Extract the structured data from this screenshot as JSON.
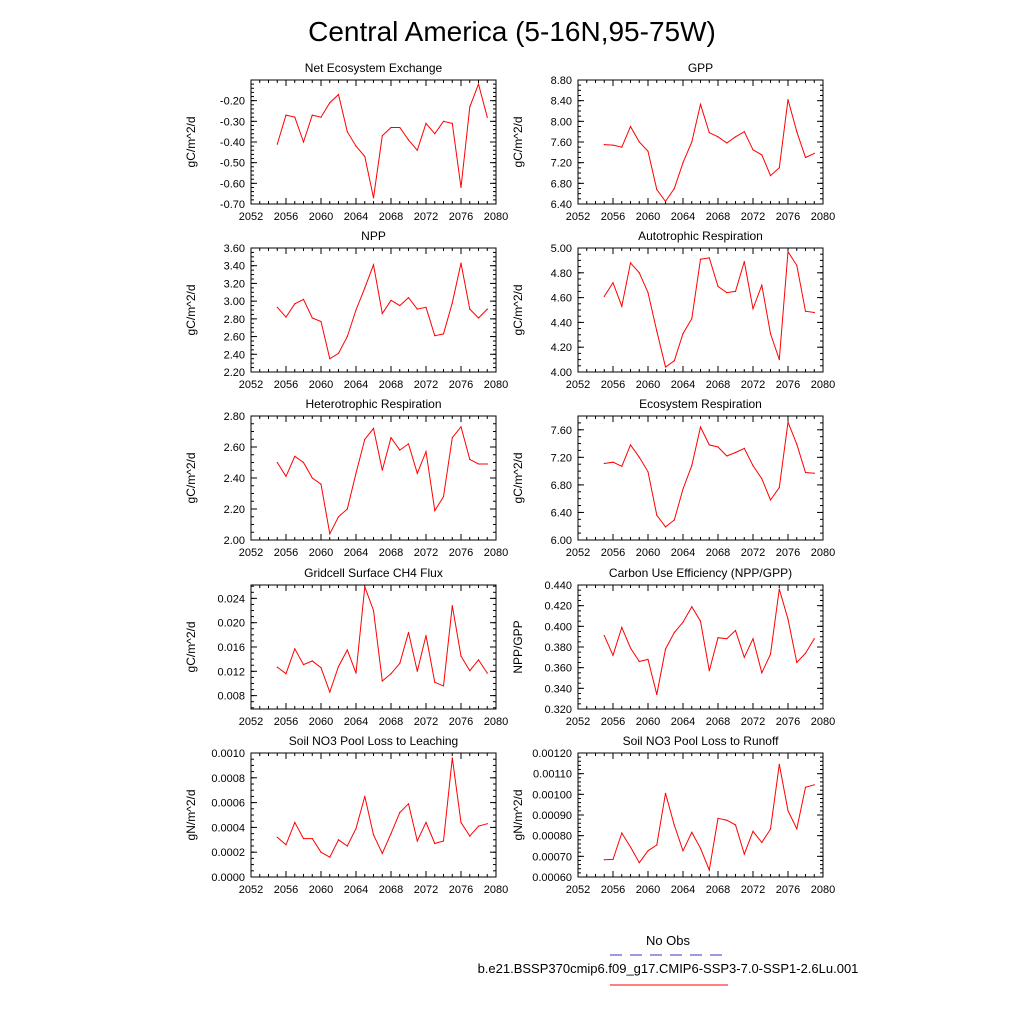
{
  "figure": {
    "title": "Central America (5-16N,95-75W)",
    "legend": {
      "obs_label": "No Obs",
      "obs_color": "#3333cc",
      "model_label": "b.e21.BSSP370cmip6.f09_g17.CMIP6-SSP3-7.0-SSP1-2.6Lu.001",
      "model_color": "#ff0000"
    }
  },
  "chart_data": [
    {
      "type": "line",
      "title": "Net Ecosystem Exchange",
      "ylabel": "gC/m^2/d",
      "xlim": [
        2052,
        2080
      ],
      "xticks": [
        2052,
        2056,
        2060,
        2064,
        2068,
        2072,
        2076,
        2080
      ],
      "ylim": [
        -0.7,
        -0.1
      ],
      "yticks": [
        "-0.70",
        "-0.60",
        "-0.50",
        "-0.40",
        "-0.30",
        "-0.20"
      ],
      "yminor": 0.02,
      "series": [
        {
          "color": "#ff0000",
          "x": [
            2055,
            2056,
            2057,
            2058,
            2059,
            2060,
            2061,
            2062,
            2063,
            2064,
            2065,
            2066,
            2067,
            2068,
            2069,
            2070,
            2071,
            2072,
            2073,
            2074,
            2075,
            2076,
            2077,
            2078,
            2079
          ],
          "y": [
            -0.41,
            -0.27,
            -0.28,
            -0.4,
            -0.27,
            -0.28,
            -0.21,
            -0.17,
            -0.35,
            -0.42,
            -0.47,
            -0.67,
            -0.37,
            -0.33,
            -0.33,
            -0.39,
            -0.44,
            -0.31,
            -0.36,
            -0.3,
            -0.31,
            -0.62,
            -0.23,
            -0.12,
            -0.28
          ]
        }
      ]
    },
    {
      "type": "line",
      "title": "GPP",
      "ylabel": "gC/m^2/d",
      "xlim": [
        2052,
        2080
      ],
      "xticks": [
        2052,
        2056,
        2060,
        2064,
        2068,
        2072,
        2076,
        2080
      ],
      "ylim": [
        6.4,
        8.8
      ],
      "yticks": [
        "6.40",
        "6.80",
        "7.20",
        "7.60",
        "8.00",
        "8.40",
        "8.80"
      ],
      "yminor": 0.1,
      "series": [
        {
          "color": "#ff0000",
          "x": [
            2055,
            2056,
            2057,
            2058,
            2059,
            2060,
            2061,
            2062,
            2063,
            2064,
            2065,
            2066,
            2067,
            2068,
            2069,
            2070,
            2071,
            2072,
            2073,
            2074,
            2075,
            2076,
            2077,
            2078,
            2079
          ],
          "y": [
            7.55,
            7.54,
            7.5,
            7.9,
            7.6,
            7.42,
            6.68,
            6.45,
            6.7,
            7.2,
            7.6,
            8.33,
            7.78,
            7.7,
            7.58,
            7.7,
            7.8,
            7.45,
            7.35,
            6.95,
            7.1,
            8.42,
            7.8,
            7.3,
            7.38
          ]
        }
      ]
    },
    {
      "type": "line",
      "title": "NPP",
      "ylabel": "gC/m^2/d",
      "xlim": [
        2052,
        2080
      ],
      "xticks": [
        2052,
        2056,
        2060,
        2064,
        2068,
        2072,
        2076,
        2080
      ],
      "ylim": [
        2.2,
        3.6
      ],
      "yticks": [
        "2.20",
        "2.40",
        "2.60",
        "2.80",
        "3.00",
        "3.20",
        "3.40",
        "3.60"
      ],
      "yminor": 0.05,
      "series": [
        {
          "color": "#ff0000",
          "x": [
            2055,
            2056,
            2057,
            2058,
            2059,
            2060,
            2061,
            2062,
            2063,
            2064,
            2065,
            2066,
            2067,
            2068,
            2069,
            2070,
            2071,
            2072,
            2073,
            2074,
            2075,
            2076,
            2077,
            2078,
            2079
          ],
          "y": [
            2.93,
            2.82,
            2.97,
            3.02,
            2.81,
            2.77,
            2.35,
            2.41,
            2.6,
            2.9,
            3.15,
            3.41,
            2.86,
            3.01,
            2.95,
            3.04,
            2.91,
            2.93,
            2.61,
            2.63,
            2.98,
            3.43,
            2.91,
            2.81,
            2.91
          ]
        }
      ]
    },
    {
      "type": "line",
      "title": "Autotrophic Respiration",
      "ylabel": "gC/m^2/d",
      "xlim": [
        2052,
        2080
      ],
      "xticks": [
        2052,
        2056,
        2060,
        2064,
        2068,
        2072,
        2076,
        2080
      ],
      "ylim": [
        4.0,
        5.0
      ],
      "yticks": [
        "4.00",
        "4.20",
        "4.40",
        "4.60",
        "4.80",
        "5.00"
      ],
      "yminor": 0.05,
      "series": [
        {
          "color": "#ff0000",
          "x": [
            2055,
            2056,
            2057,
            2058,
            2059,
            2060,
            2061,
            2062,
            2063,
            2064,
            2065,
            2066,
            2067,
            2068,
            2069,
            2070,
            2071,
            2072,
            2073,
            2074,
            2075,
            2076,
            2077,
            2078,
            2079
          ],
          "y": [
            4.61,
            4.72,
            4.53,
            4.88,
            4.8,
            4.64,
            4.33,
            4.04,
            4.09,
            4.31,
            4.43,
            4.91,
            4.92,
            4.69,
            4.64,
            4.65,
            4.89,
            4.51,
            4.7,
            4.31,
            4.1,
            4.97,
            4.86,
            4.49,
            4.48
          ]
        }
      ]
    },
    {
      "type": "line",
      "title": "Heterotrophic Respiration",
      "ylabel": "gC/m^2/d",
      "xlim": [
        2052,
        2080
      ],
      "xticks": [
        2052,
        2056,
        2060,
        2064,
        2068,
        2072,
        2076,
        2080
      ],
      "ylim": [
        2.0,
        2.8
      ],
      "yticks": [
        "2.00",
        "2.20",
        "2.40",
        "2.60",
        "2.80"
      ],
      "yminor": 0.05,
      "series": [
        {
          "color": "#ff0000",
          "x": [
            2055,
            2056,
            2057,
            2058,
            2059,
            2060,
            2061,
            2062,
            2063,
            2064,
            2065,
            2066,
            2067,
            2068,
            2069,
            2070,
            2071,
            2072,
            2073,
            2074,
            2075,
            2076,
            2077,
            2078,
            2079
          ],
          "y": [
            2.5,
            2.41,
            2.54,
            2.5,
            2.4,
            2.36,
            2.04,
            2.15,
            2.2,
            2.43,
            2.65,
            2.72,
            2.45,
            2.66,
            2.58,
            2.62,
            2.43,
            2.57,
            2.19,
            2.28,
            2.66,
            2.73,
            2.52,
            2.49,
            2.49
          ]
        }
      ]
    },
    {
      "type": "line",
      "title": "Ecosystem Respiration",
      "ylabel": "gC/m^2/d",
      "xlim": [
        2052,
        2080
      ],
      "xticks": [
        2052,
        2056,
        2060,
        2064,
        2068,
        2072,
        2076,
        2080
      ],
      "ylim": [
        6.0,
        7.8
      ],
      "yticks": [
        "6.00",
        "6.40",
        "6.80",
        "7.20",
        "7.60"
      ],
      "yminor": 0.1,
      "series": [
        {
          "color": "#ff0000",
          "x": [
            2055,
            2056,
            2057,
            2058,
            2059,
            2060,
            2061,
            2062,
            2063,
            2064,
            2065,
            2066,
            2067,
            2068,
            2069,
            2070,
            2071,
            2072,
            2073,
            2074,
            2075,
            2076,
            2077,
            2078,
            2079
          ],
          "y": [
            7.11,
            7.13,
            7.07,
            7.38,
            7.2,
            6.99,
            6.36,
            6.19,
            6.29,
            6.74,
            7.08,
            7.64,
            7.38,
            7.35,
            7.22,
            7.27,
            7.33,
            7.08,
            6.89,
            6.58,
            6.76,
            7.71,
            7.39,
            6.98,
            6.97
          ]
        }
      ]
    },
    {
      "type": "line",
      "title": "Gridcell Surface CH4 Flux",
      "ylabel": "gC/m^2/d",
      "xlim": [
        2052,
        2080
      ],
      "xticks": [
        2052,
        2056,
        2060,
        2064,
        2068,
        2072,
        2076,
        2080
      ],
      "ylim": [
        0.0058,
        0.0262
      ],
      "yticks": [
        "0.008",
        "0.012",
        "0.016",
        "0.020",
        "0.024"
      ],
      "ytickvals": [
        0.008,
        0.012,
        0.016,
        0.02,
        0.024
      ],
      "yminor": 0.001,
      "series": [
        {
          "color": "#ff0000",
          "x": [
            2055,
            2056,
            2057,
            2058,
            2059,
            2060,
            2061,
            2062,
            2063,
            2064,
            2065,
            2066,
            2067,
            2068,
            2069,
            2070,
            2071,
            2072,
            2073,
            2074,
            2075,
            2076,
            2077,
            2078,
            2079
          ],
          "y": [
            0.0127,
            0.0116,
            0.0157,
            0.0131,
            0.0137,
            0.0126,
            0.0086,
            0.0128,
            0.0155,
            0.0117,
            0.0259,
            0.022,
            0.0104,
            0.0116,
            0.0133,
            0.0184,
            0.012,
            0.0179,
            0.0102,
            0.0096,
            0.0228,
            0.0145,
            0.0121,
            0.0139,
            0.0117
          ]
        }
      ]
    },
    {
      "type": "line",
      "title": "Carbon Use Efficiency (NPP/GPP)",
      "ylabel": "NPP/GPP",
      "xlim": [
        2052,
        2080
      ],
      "xticks": [
        2052,
        2056,
        2060,
        2064,
        2068,
        2072,
        2076,
        2080
      ],
      "ylim": [
        0.32,
        0.44
      ],
      "yticks": [
        "0.320",
        "0.340",
        "0.360",
        "0.380",
        "0.400",
        "0.420",
        "0.440"
      ],
      "yminor": 0.005,
      "series": [
        {
          "color": "#ff0000",
          "x": [
            2055,
            2056,
            2057,
            2058,
            2059,
            2060,
            2061,
            2062,
            2063,
            2064,
            2065,
            2066,
            2067,
            2068,
            2069,
            2070,
            2071,
            2072,
            2073,
            2074,
            2075,
            2076,
            2077,
            2078,
            2079
          ],
          "y": [
            0.391,
            0.372,
            0.399,
            0.379,
            0.366,
            0.368,
            0.334,
            0.378,
            0.394,
            0.404,
            0.419,
            0.405,
            0.357,
            0.389,
            0.388,
            0.396,
            0.37,
            0.388,
            0.355,
            0.373,
            0.436,
            0.407,
            0.365,
            0.374,
            0.388
          ]
        }
      ]
    },
    {
      "type": "line",
      "title": "Soil NO3 Pool Loss to Leaching",
      "ylabel": "gN/m^2/d",
      "xlim": [
        2052,
        2080
      ],
      "xticks": [
        2052,
        2056,
        2060,
        2064,
        2068,
        2072,
        2076,
        2080
      ],
      "ylim": [
        0.0,
        0.001
      ],
      "yticks": [
        "0.0000",
        "0.0002",
        "0.0004",
        "0.0006",
        "0.0008",
        "0.0010"
      ],
      "yminor": 5e-05,
      "series": [
        {
          "color": "#ff0000",
          "x": [
            2055,
            2056,
            2057,
            2058,
            2059,
            2060,
            2061,
            2062,
            2063,
            2064,
            2065,
            2066,
            2067,
            2068,
            2069,
            2070,
            2071,
            2072,
            2073,
            2074,
            2075,
            2076,
            2077,
            2078,
            2079
          ],
          "y": [
            0.00032,
            0.00026,
            0.00044,
            0.00031,
            0.00031,
            0.0002,
            0.00016,
            0.0003,
            0.00025,
            0.00039,
            0.00065,
            0.00034,
            0.00019,
            0.00035,
            0.00052,
            0.00059,
            0.00029,
            0.00044,
            0.00027,
            0.00029,
            0.00096,
            0.00044,
            0.00033,
            0.00041,
            0.00043
          ]
        }
      ]
    },
    {
      "type": "line",
      "title": "Soil NO3 Pool Loss to Runoff",
      "ylabel": "gN/m^2/d",
      "xlim": [
        2052,
        2080
      ],
      "xticks": [
        2052,
        2056,
        2060,
        2064,
        2068,
        2072,
        2076,
        2080
      ],
      "ylim": [
        0.0006,
        0.0012
      ],
      "yticks": [
        "0.00060",
        "0.00070",
        "0.00080",
        "0.00090",
        "0.00100",
        "0.00110",
        "0.00120"
      ],
      "yminor": 2e-05,
      "series": [
        {
          "color": "#ff0000",
          "x": [
            2055,
            2056,
            2057,
            2058,
            2059,
            2060,
            2061,
            2062,
            2063,
            2064,
            2065,
            2066,
            2067,
            2068,
            2069,
            2070,
            2071,
            2072,
            2073,
            2074,
            2075,
            2076,
            2077,
            2078,
            2079
          ],
          "y": [
            0.000683,
            0.000685,
            0.000813,
            0.000745,
            0.000669,
            0.000727,
            0.000755,
            0.001005,
            0.000851,
            0.000727,
            0.000816,
            0.000739,
            0.000634,
            0.000884,
            0.000875,
            0.000852,
            0.000711,
            0.000821,
            0.000767,
            0.000832,
            0.001145,
            0.000921,
            0.000833,
            0.001034,
            0.001046
          ]
        }
      ]
    }
  ]
}
